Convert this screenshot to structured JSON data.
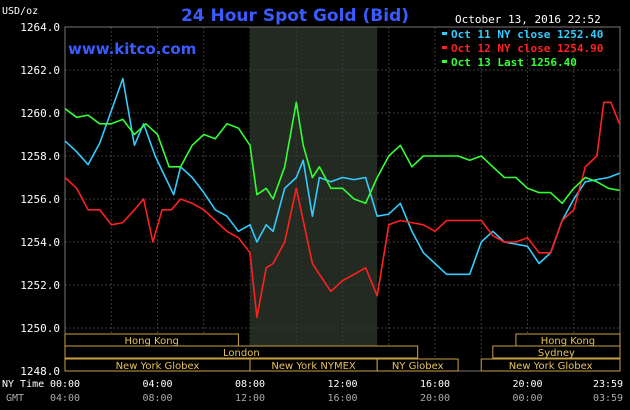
{
  "chart_data": {
    "type": "line",
    "title": "24 Hour Spot Gold (Bid)",
    "ylabel": "USD/oz",
    "source": "www.kitco.com",
    "timestamp": "October 13, 2016 22:52",
    "ylim": [
      1248.0,
      1264.0
    ],
    "y_ticks": [
      "1264.0",
      "1262.0",
      "1260.0",
      "1258.0",
      "1256.0",
      "1254.0",
      "1252.0",
      "1250.0",
      "1248.0"
    ],
    "x_ticks_ny": [
      "00:00",
      "04:00",
      "08:00",
      "12:00",
      "16:00",
      "20:00",
      "23:59"
    ],
    "x_ticks_gmt": [
      "04:00",
      "08:00",
      "12:00",
      "16:00",
      "20:00",
      "00:00",
      "03:59"
    ],
    "x_label_ny": "NY Time",
    "x_label_gmt": "GMT",
    "grid": true,
    "legend_position": "top-right",
    "highlight_hours": [
      8,
      13.5
    ],
    "sessions": [
      {
        "label": "Hong Kong",
        "start": 0,
        "end": 7.5,
        "row": 0
      },
      {
        "label": "London",
        "start": 0,
        "end": 15.25,
        "row": 1
      },
      {
        "label": "New York Globex",
        "start": 0,
        "end": 8,
        "row": 2
      },
      {
        "label": "New York NYMEX",
        "start": 8,
        "end": 13.5,
        "row": 2
      },
      {
        "label": "NY Globex",
        "start": 13.5,
        "end": 17,
        "row": 2
      },
      {
        "label": "Hong Kong",
        "start": 19.5,
        "end": 24,
        "row": 0
      },
      {
        "label": "Sydney",
        "start": 18.5,
        "end": 24,
        "row": 1
      },
      {
        "label": "New York Globex",
        "start": 18,
        "end": 24,
        "row": 2
      }
    ],
    "series": [
      {
        "name": "Oct 11 NY close 1252.40",
        "color": "#33ccff",
        "x": [
          0,
          0.5,
          1,
          1.5,
          2,
          2.5,
          3,
          3.4,
          3.9,
          4.3,
          4.7,
          5,
          5.5,
          6,
          6.5,
          7,
          7.5,
          8,
          8.3,
          8.7,
          9,
          9.5,
          10,
          10.3,
          10.7,
          11,
          11.5,
          12,
          12.5,
          13,
          13.5,
          14,
          14.5,
          15,
          15.5,
          16,
          16.5,
          17,
          17.5,
          18,
          18.5,
          19,
          19.5,
          20,
          20.5,
          21,
          21.5,
          22,
          22.5,
          23,
          23.5,
          23.98
        ],
        "values": [
          1258.7,
          1258.2,
          1257.6,
          1258.6,
          1260.1,
          1261.6,
          1258.5,
          1259.5,
          1258.0,
          1257.1,
          1256.2,
          1257.5,
          1257.0,
          1256.3,
          1255.5,
          1255.2,
          1254.5,
          1254.8,
          1254.0,
          1254.8,
          1254.5,
          1256.5,
          1257.0,
          1257.8,
          1255.2,
          1257.0,
          1256.8,
          1257.0,
          1256.9,
          1257.0,
          1255.2,
          1255.3,
          1255.8,
          1254.5,
          1253.5,
          1253.0,
          1252.5,
          1252.5,
          1252.5,
          1254.0,
          1254.5,
          1254.0,
          1253.9,
          1253.8,
          1253.0,
          1253.5,
          1255.0,
          1256.0,
          1256.8,
          1256.9,
          1257.0,
          1257.2
        ]
      },
      {
        "name": "Oct 12 NY close 1254.90",
        "color": "#ff2020",
        "x": [
          0,
          0.5,
          1,
          1.5,
          2,
          2.5,
          3,
          3.4,
          3.8,
          4.2,
          4.6,
          5,
          5.5,
          6,
          6.5,
          7,
          7.5,
          8,
          8.3,
          8.7,
          9,
          9.5,
          10,
          10.3,
          10.7,
          11,
          11.5,
          12,
          12.5,
          13,
          13.5,
          14,
          14.5,
          15,
          15.5,
          16,
          16.5,
          17,
          17.5,
          18,
          18.5,
          19,
          19.5,
          20,
          20.5,
          21,
          21.5,
          22,
          22.5,
          23,
          23.3,
          23.6,
          23.98
        ],
        "values": [
          1257.0,
          1256.5,
          1255.5,
          1255.5,
          1254.8,
          1254.9,
          1255.5,
          1256.0,
          1254.0,
          1255.5,
          1255.5,
          1256.0,
          1255.8,
          1255.5,
          1255.0,
          1254.5,
          1254.2,
          1253.5,
          1250.5,
          1252.8,
          1253.0,
          1254.0,
          1256.5,
          1255.0,
          1253.0,
          1252.5,
          1251.7,
          1252.2,
          1252.5,
          1252.8,
          1251.5,
          1254.8,
          1255.0,
          1254.9,
          1254.8,
          1254.5,
          1255.0,
          1255.0,
          1255.0,
          1255.0,
          1254.3,
          1254.0,
          1254.0,
          1254.2,
          1253.5,
          1253.5,
          1255.0,
          1255.5,
          1257.5,
          1258.0,
          1260.5,
          1260.5,
          1259.5
        ]
      },
      {
        "name": "Oct 13 Last 1256.40",
        "color": "#33ff33",
        "x": [
          0,
          0.5,
          1,
          1.5,
          2,
          2.5,
          3,
          3.5,
          4,
          4.5,
          5,
          5.5,
          6,
          6.5,
          7,
          7.5,
          8,
          8.3,
          8.7,
          9,
          9.5,
          10,
          10.3,
          10.7,
          11,
          11.5,
          12,
          12.5,
          13,
          13.5,
          14,
          14.5,
          15,
          15.5,
          16,
          16.5,
          17,
          17.5,
          18,
          18.5,
          19,
          19.5,
          20,
          20.5,
          21,
          21.5,
          22,
          22.5,
          23,
          23.5,
          23.98
        ],
        "values": [
          1260.2,
          1259.8,
          1259.9,
          1259.5,
          1259.5,
          1259.7,
          1259.0,
          1259.5,
          1259.0,
          1257.5,
          1257.5,
          1258.5,
          1259.0,
          1258.8,
          1259.5,
          1259.3,
          1258.5,
          1256.2,
          1256.5,
          1256.0,
          1257.5,
          1260.5,
          1258.5,
          1257.0,
          1257.5,
          1256.5,
          1256.5,
          1256.0,
          1255.8,
          1257.0,
          1258.0,
          1258.5,
          1257.5,
          1258.0,
          1258.0,
          1258.0,
          1258.0,
          1257.8,
          1258.0,
          1257.5,
          1257.0,
          1257.0,
          1256.5,
          1256.3,
          1256.3,
          1255.8,
          1256.5,
          1257.0,
          1256.8,
          1256.5,
          1256.4
        ]
      }
    ]
  }
}
